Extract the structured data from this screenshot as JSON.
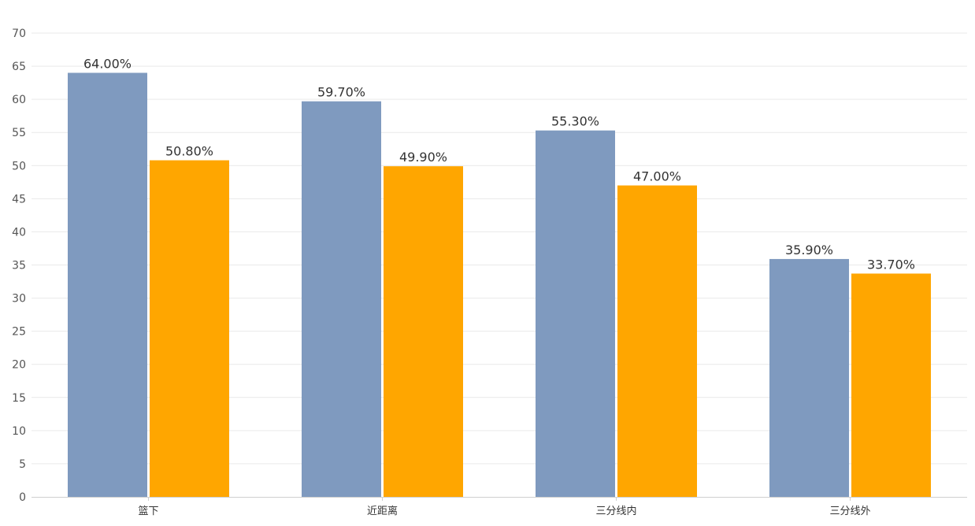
{
  "chart_data": {
    "type": "bar",
    "title": "",
    "xlabel": "",
    "ylabel": "",
    "categories": [
      "篮下",
      "近距离",
      "三分线内",
      "三分线外"
    ],
    "series": [
      {
        "values": [
          64.0,
          59.7,
          55.3,
          35.9
        ],
        "labels": [
          "64.00%",
          "59.70%",
          "55.30%",
          "35.90%"
        ],
        "color": "#7f9abf"
      },
      {
        "values": [
          50.8,
          49.9,
          47.0,
          33.7
        ],
        "labels": [
          "50.80%",
          "49.90%",
          "47.00%",
          "33.70%"
        ],
        "color": "#ffa600"
      }
    ],
    "yticks": [
      "0",
      "5",
      "10",
      "15",
      "20",
      "25",
      "30",
      "35",
      "40",
      "45",
      "50",
      "55",
      "60",
      "65",
      "70"
    ],
    "ylim": [
      0,
      70
    ],
    "grid": true,
    "legend": "none"
  }
}
